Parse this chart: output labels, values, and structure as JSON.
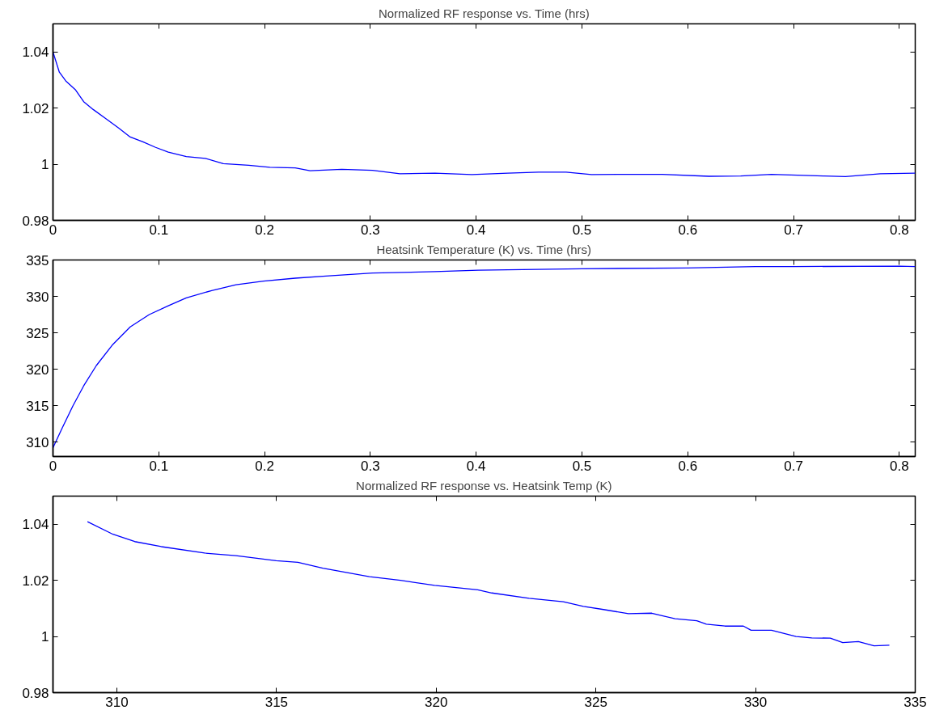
{
  "chart_data": [
    {
      "type": "line",
      "title": "Normalized RF response vs. Time (hrs)",
      "xlim": [
        0,
        0.815
      ],
      "xticks": [
        0,
        0.1,
        0.2,
        0.3,
        0.4,
        0.5,
        0.6,
        0.7,
        0.8
      ],
      "ylim": [
        0.98,
        1.05
      ],
      "yticks": [
        0.98,
        1,
        1.02,
        1.04
      ],
      "x": [
        0,
        0.006,
        0.012,
        0.021,
        0.029,
        0.038,
        0.05,
        0.062,
        0.073,
        0.085,
        0.097,
        0.109,
        0.126,
        0.144,
        0.161,
        0.185,
        0.205,
        0.229,
        0.243,
        0.273,
        0.302,
        0.328,
        0.361,
        0.396,
        0.43,
        0.459,
        0.485,
        0.509,
        0.547,
        0.576,
        0.62,
        0.65,
        0.679,
        0.729,
        0.749,
        0.782,
        0.815
      ],
      "series": [
        {
          "color": "#0000ff",
          "values": [
            1.04,
            1.0328,
            1.0297,
            1.0266,
            1.0223,
            1.0195,
            1.0162,
            1.0129,
            1.0097,
            1.008,
            1.006,
            1.0043,
            1.0027,
            1.0021,
            1.0002,
            0.9996,
            0.9989,
            0.9987,
            0.9977,
            0.9982,
            0.9978,
            0.9966,
            0.9968,
            0.9963,
            0.9968,
            0.9972,
            0.9972,
            0.9963,
            0.9964,
            0.9964,
            0.9957,
            0.9958,
            0.9964,
            0.9958,
            0.9956,
            0.9966,
            0.9968
          ]
        }
      ]
    },
    {
      "type": "line",
      "title": "Heatsink Temperature (K) vs. Time (hrs)",
      "xlim": [
        0,
        0.815
      ],
      "xticks": [
        0,
        0.1,
        0.2,
        0.3,
        0.4,
        0.5,
        0.6,
        0.7,
        0.8
      ],
      "ylim": [
        308,
        335
      ],
      "yticks": [
        310,
        315,
        320,
        325,
        330,
        335
      ],
      "x": [
        0,
        0.009,
        0.019,
        0.029,
        0.041,
        0.056,
        0.073,
        0.091,
        0.109,
        0.126,
        0.15,
        0.173,
        0.199,
        0.229,
        0.258,
        0.302,
        0.361,
        0.402,
        0.5,
        0.6,
        0.664,
        0.7,
        0.8,
        0.815
      ],
      "series": [
        {
          "color": "#0000ff",
          "values": [
            309.2,
            312.0,
            315.0,
            317.7,
            320.5,
            323.3,
            325.8,
            327.5,
            328.7,
            329.8,
            330.8,
            331.6,
            332.1,
            332.5,
            332.8,
            333.2,
            333.4,
            333.6,
            333.8,
            333.9,
            334.1,
            334.1,
            334.15,
            334.1
          ]
        }
      ]
    },
    {
      "type": "line",
      "title": "Normalized RF response vs. Heatsink Temp (K)",
      "xlim": [
        308,
        335
      ],
      "xticks": [
        310,
        315,
        320,
        325,
        330,
        335
      ],
      "ylim": [
        0.98,
        1.05
      ],
      "yticks": [
        0.98,
        1,
        1.02,
        1.04
      ],
      "x": [
        309.08,
        309.88,
        310.56,
        311.39,
        312.75,
        313.73,
        314.99,
        315.67,
        316.45,
        317.91,
        318.88,
        319.95,
        321.3,
        321.74,
        322.91,
        323.98,
        324.61,
        325.24,
        326.02,
        326.75,
        327.48,
        328.16,
        328.46,
        329.04,
        329.62,
        329.86,
        330.5,
        331.27,
        331.76,
        332.34,
        332.73,
        333.22,
        333.71,
        334.19
      ],
      "series": [
        {
          "color": "#0000ff",
          "values": [
            1.0409,
            1.0364,
            1.0338,
            1.032,
            1.0297,
            1.0288,
            1.027,
            1.0264,
            1.0243,
            1.0213,
            1.02,
            1.0182,
            1.0166,
            1.0155,
            1.0136,
            1.0124,
            1.0107,
            1.0096,
            1.0081,
            1.0083,
            1.0063,
            1.0056,
            1.0044,
            1.0037,
            1.0037,
            1.0022,
            1.0022,
            1.0,
            0.9995,
            0.9994,
            0.9978,
            0.9982,
            0.9967,
            0.9969
          ]
        }
      ]
    }
  ]
}
